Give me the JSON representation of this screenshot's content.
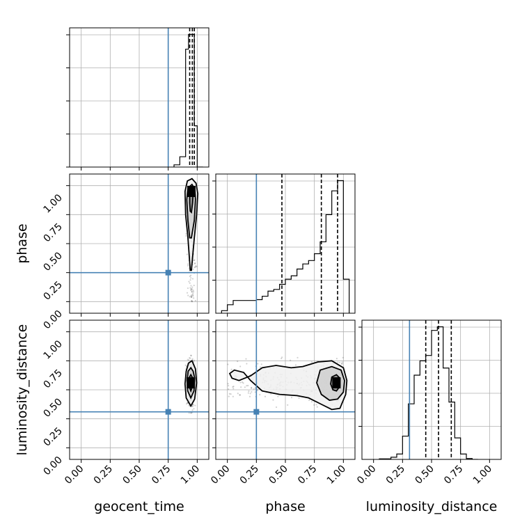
{
  "chart_data": {
    "type": "corner",
    "parameters": [
      "geocent_time",
      "phase",
      "luminosity_distance"
    ],
    "axis_range": [
      -0.1,
      1.1
    ],
    "tick_labels": [
      "0.00",
      "0.25",
      "0.50",
      "0.75",
      "1.00"
    ],
    "truths": {
      "geocent_time": 0.75,
      "phase": 0.25,
      "luminosity_distance": 0.31
    },
    "grid": true,
    "histograms": [
      {
        "parameter": "geocent_time",
        "bin_edges": [
          0.8,
          0.85,
          0.9,
          0.925,
          0.95,
          0.975,
          1.0,
          1.05
        ],
        "counts": [
          0.015,
          0.07,
          0.8,
          0.9,
          0.9,
          0.28,
          0.0
        ],
        "quantiles": [
          0.935,
          0.958,
          0.975
        ]
      },
      {
        "parameter": "phase",
        "bin_edges": [
          -0.05,
          0.0,
          0.05,
          0.125,
          0.2,
          0.25,
          0.3,
          0.35,
          0.4,
          0.45,
          0.5,
          0.55,
          0.6,
          0.65,
          0.7,
          0.75,
          0.8,
          0.85,
          0.9,
          0.95,
          1.0,
          1.05
        ],
        "counts": [
          0.015,
          0.05,
          0.075,
          0.075,
          0.075,
          0.08,
          0.1,
          0.13,
          0.14,
          0.17,
          0.2,
          0.22,
          0.26,
          0.29,
          0.31,
          0.35,
          0.42,
          0.58,
          0.72,
          0.78,
          0.2
        ],
        "quantiles": [
          0.47,
          0.81,
          0.95
        ]
      },
      {
        "parameter": "luminosity_distance",
        "bin_edges": [
          0.05,
          0.15,
          0.2,
          0.25,
          0.3,
          0.35,
          0.4,
          0.45,
          0.5,
          0.55,
          0.6,
          0.65,
          0.7,
          0.75,
          0.8,
          0.85,
          0.9
        ],
        "counts": [
          0.003,
          0.012,
          0.03,
          0.13,
          0.31,
          0.47,
          0.55,
          0.58,
          0.72,
          0.74,
          0.51,
          0.32,
          0.12,
          0.03,
          0.005,
          0.0
        ],
        "quantiles": [
          0.45,
          0.56,
          0.67
        ]
      }
    ],
    "pairs": [
      {
        "x": "geocent_time",
        "y": "phase",
        "mode": [
          0.95,
          0.95
        ],
        "contours": [
          [
            [
              0.95,
              0.77
            ],
            [
              0.96,
              0.85
            ],
            [
              0.965,
              0.93
            ],
            [
              0.955,
              0.97
            ],
            [
              0.935,
              0.95
            ],
            [
              0.935,
              0.85
            ],
            [
              0.94,
              0.78
            ]
          ],
          [
            [
              0.95,
              0.55
            ],
            [
              0.975,
              0.7
            ],
            [
              0.985,
              0.88
            ],
            [
              0.98,
              0.97
            ],
            [
              0.955,
              1.01
            ],
            [
              0.92,
              0.98
            ],
            [
              0.91,
              0.88
            ],
            [
              0.92,
              0.7
            ],
            [
              0.935,
              0.55
            ]
          ],
          [
            [
              0.95,
              0.27
            ],
            [
              0.975,
              0.55
            ],
            [
              0.995,
              0.75
            ],
            [
              1.005,
              0.93
            ],
            [
              0.99,
              1.02
            ],
            [
              0.955,
              1.06
            ],
            [
              0.915,
              1.04
            ],
            [
              0.895,
              0.95
            ],
            [
              0.9,
              0.75
            ],
            [
              0.92,
              0.55
            ],
            [
              0.94,
              0.27
            ]
          ]
        ],
        "sample_extent": {
          "x": [
            0.9,
            1.0
          ],
          "y": [
            0.0,
            1.0
          ]
        }
      },
      {
        "x": "geocent_time",
        "y": "luminosity_distance",
        "mode": [
          0.945,
          0.56
        ],
        "contours": [
          [
            [
              0.945,
              0.49
            ],
            [
              0.96,
              0.53
            ],
            [
              0.962,
              0.6
            ],
            [
              0.945,
              0.63
            ],
            [
              0.928,
              0.6
            ],
            [
              0.93,
              0.53
            ]
          ],
          [
            [
              0.945,
              0.43
            ],
            [
              0.972,
              0.49
            ],
            [
              0.978,
              0.6
            ],
            [
              0.965,
              0.66
            ],
            [
              0.945,
              0.69
            ],
            [
              0.922,
              0.66
            ],
            [
              0.912,
              0.58
            ],
            [
              0.918,
              0.49
            ]
          ],
          [
            [
              0.945,
              0.36
            ],
            [
              0.978,
              0.42
            ],
            [
              0.995,
              0.56
            ],
            [
              0.985,
              0.68
            ],
            [
              0.955,
              0.75
            ],
            [
              0.925,
              0.73
            ],
            [
              0.905,
              0.66
            ],
            [
              0.895,
              0.55
            ],
            [
              0.905,
              0.43
            ]
          ]
        ],
        "sample_extent": {
          "x": [
            0.9,
            1.0
          ],
          "y": [
            0.3,
            0.9
          ]
        }
      },
      {
        "x": "phase",
        "y": "luminosity_distance",
        "mode": [
          0.94,
          0.56
        ],
        "contours": [
          [
            [
              0.94,
              0.49
            ],
            [
              0.97,
              0.53
            ],
            [
              0.97,
              0.6
            ],
            [
              0.94,
              0.63
            ],
            [
              0.9,
              0.61
            ],
            [
              0.89,
              0.55
            ],
            [
              0.91,
              0.5
            ]
          ],
          [
            [
              0.95,
              0.42
            ],
            [
              1.0,
              0.48
            ],
            [
              1.01,
              0.58
            ],
            [
              0.98,
              0.67
            ],
            [
              0.9,
              0.7
            ],
            [
              0.8,
              0.67
            ],
            [
              0.77,
              0.56
            ],
            [
              0.81,
              0.46
            ],
            [
              0.88,
              0.41
            ]
          ],
          [
            [
              0.97,
              0.34
            ],
            [
              1.02,
              0.46
            ],
            [
              1.03,
              0.58
            ],
            [
              1.0,
              0.69
            ],
            [
              0.9,
              0.75
            ],
            [
              0.78,
              0.74
            ],
            [
              0.65,
              0.7
            ],
            [
              0.55,
              0.69
            ],
            [
              0.42,
              0.71
            ],
            [
              0.3,
              0.69
            ],
            [
              0.2,
              0.62
            ],
            [
              0.1,
              0.58
            ],
            [
              0.04,
              0.6
            ],
            [
              0.02,
              0.64
            ],
            [
              0.06,
              0.67
            ],
            [
              0.14,
              0.65
            ],
            [
              0.2,
              0.58
            ],
            [
              0.3,
              0.49
            ],
            [
              0.45,
              0.46
            ],
            [
              0.6,
              0.45
            ],
            [
              0.7,
              0.43
            ],
            [
              0.8,
              0.38
            ],
            [
              0.9,
              0.33
            ]
          ]
        ],
        "sample_extent": {
          "x": [
            0.0,
            1.0
          ],
          "y": [
            0.35,
            0.8
          ]
        }
      }
    ]
  }
}
